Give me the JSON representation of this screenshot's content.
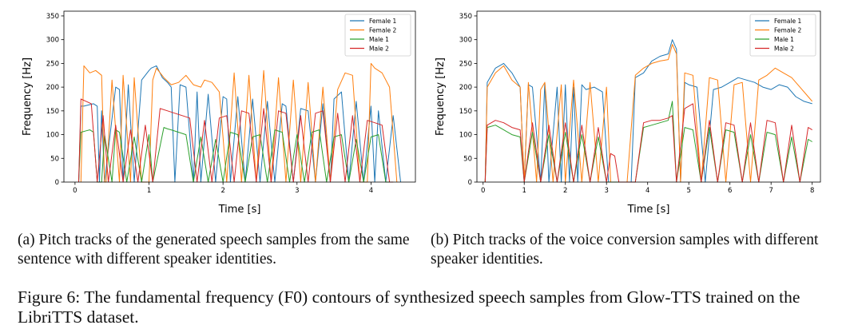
{
  "figure_caption": "Figure 6: The fundamental frequency (F0) contours of synthesized speech samples from Glow-TTS trained on the LibriTTS dataset.",
  "subcaptions": [
    "(a) Pitch tracks of the generated speech samples from the same sentence with different speaker identities.",
    "(b) Pitch tracks of the voice conversion samples with different speaker identities."
  ],
  "colors": {
    "female1": "#1f77b4",
    "female2": "#ff7f0e",
    "male1": "#2ca02c",
    "male2": "#d62728"
  },
  "chart_data": [
    {
      "type": "line",
      "xlabel": "Time [s]",
      "ylabel": "Frequency [Hz]",
      "xlim": [
        -0.15,
        4.6
      ],
      "ylim": [
        0,
        360
      ],
      "xticks": [
        0,
        1,
        2,
        3,
        4
      ],
      "yticks": [
        0,
        50,
        100,
        150,
        200,
        250,
        300,
        350
      ],
      "grid": false,
      "legend_position": "top-right",
      "series": [
        {
          "name": "Female 1",
          "color": "#1f77b4",
          "x": [
            0.05,
            0.08,
            0.12,
            0.25,
            0.3,
            0.33,
            0.36,
            0.4,
            0.55,
            0.6,
            0.65,
            0.72,
            0.8,
            0.9,
            1.0,
            1.03,
            1.1,
            1.18,
            1.25,
            1.3,
            1.35,
            1.42,
            1.5,
            1.6,
            1.65,
            1.7,
            1.8,
            1.9,
            2.0,
            2.05,
            2.1,
            2.2,
            2.3,
            2.4,
            2.5,
            2.6,
            2.7,
            2.8,
            2.85,
            2.95,
            3.05,
            3.15,
            3.25,
            3.35,
            3.45,
            3.5,
            3.6,
            3.7,
            3.8,
            3.9,
            4.0,
            4.05,
            4.1,
            4.2,
            4.3,
            4.4
          ],
          "y": [
            0,
            160,
            160,
            165,
            160,
            0,
            150,
            0,
            200,
            195,
            0,
            205,
            0,
            215,
            235,
            240,
            245,
            220,
            210,
            200,
            0,
            205,
            200,
            0,
            190,
            0,
            185,
            0,
            180,
            175,
            0,
            180,
            0,
            175,
            0,
            170,
            0,
            165,
            160,
            0,
            155,
            150,
            0,
            165,
            0,
            175,
            190,
            0,
            170,
            0,
            160,
            0,
            150,
            0,
            140,
            0
          ]
        },
        {
          "name": "Female 2",
          "color": "#ff7f0e",
          "x": [
            0.08,
            0.12,
            0.2,
            0.28,
            0.36,
            0.4,
            0.42,
            0.5,
            0.6,
            0.65,
            0.75,
            0.8,
            0.9,
            1.0,
            1.05,
            1.1,
            1.2,
            1.3,
            1.4,
            1.5,
            1.6,
            1.7,
            1.75,
            1.85,
            1.95,
            2.05,
            2.15,
            2.25,
            2.35,
            2.45,
            2.55,
            2.65,
            2.75,
            2.85,
            2.95,
            3.05,
            3.15,
            3.25,
            3.35,
            3.45,
            3.55,
            3.65,
            3.75,
            3.85,
            3.95,
            4.0,
            4.05,
            4.15,
            4.25,
            4.35
          ],
          "y": [
            0,
            245,
            230,
            235,
            225,
            0,
            0,
            215,
            0,
            225,
            0,
            220,
            0,
            0,
            215,
            240,
            220,
            205,
            210,
            225,
            205,
            200,
            215,
            210,
            190,
            0,
            230,
            0,
            225,
            0,
            235,
            0,
            220,
            0,
            215,
            0,
            210,
            0,
            200,
            0,
            195,
            230,
            225,
            0,
            0,
            250,
            240,
            230,
            200,
            0
          ]
        },
        {
          "name": "Male 1",
          "color": "#2ca02c",
          "x": [
            0.05,
            0.08,
            0.15,
            0.2,
            0.25,
            0.3,
            0.36,
            0.4,
            0.5,
            0.55,
            0.6,
            0.7,
            0.8,
            0.9,
            1.0,
            1.05,
            1.2,
            1.25,
            1.3,
            1.4,
            1.5,
            1.6,
            1.7,
            1.8,
            1.9,
            2.0,
            2.1,
            2.2,
            2.3,
            2.4,
            2.5,
            2.6,
            2.7,
            2.8,
            2.9,
            3.0,
            3.1,
            3.2,
            3.3,
            3.4,
            3.5,
            3.6,
            3.7,
            3.8,
            3.9,
            4.0,
            4.1,
            4.2,
            4.3
          ],
          "y": [
            0,
            105,
            108,
            110,
            105,
            0,
            0,
            100,
            0,
            110,
            105,
            0,
            95,
            0,
            100,
            0,
            115,
            112,
            110,
            105,
            100,
            0,
            95,
            0,
            90,
            0,
            105,
            100,
            0,
            95,
            100,
            0,
            110,
            105,
            0,
            100,
            0,
            105,
            110,
            0,
            95,
            100,
            0,
            90,
            0,
            95,
            100,
            0,
            0
          ]
        },
        {
          "name": "Male 2",
          "color": "#d62728",
          "x": [
            0.05,
            0.08,
            0.15,
            0.22,
            0.3,
            0.38,
            0.45,
            0.55,
            0.65,
            0.75,
            0.85,
            0.95,
            1.05,
            1.15,
            1.25,
            1.35,
            1.45,
            1.55,
            1.65,
            1.75,
            1.85,
            1.95,
            2.05,
            2.15,
            2.25,
            2.35,
            2.45,
            2.55,
            2.65,
            2.75,
            2.85,
            2.95,
            3.05,
            3.15,
            3.25,
            3.35,
            3.45,
            3.55,
            3.65,
            3.75,
            3.85,
            3.95,
            4.05,
            4.15,
            4.25,
            4.3
          ],
          "y": [
            0,
            175,
            170,
            165,
            0,
            140,
            0,
            120,
            0,
            110,
            0,
            120,
            0,
            155,
            150,
            145,
            140,
            135,
            0,
            130,
            0,
            135,
            140,
            0,
            150,
            145,
            0,
            155,
            0,
            150,
            145,
            0,
            140,
            0,
            145,
            150,
            0,
            145,
            0,
            140,
            0,
            130,
            125,
            120,
            0,
            0
          ]
        }
      ]
    },
    {
      "type": "line",
      "xlabel": "Time [s]",
      "ylabel": "Frequency [Hz]",
      "xlim": [
        -0.15,
        8.2
      ],
      "ylim": [
        0,
        360
      ],
      "xticks": [
        0,
        1,
        2,
        3,
        4,
        5,
        6,
        7,
        8
      ],
      "yticks": [
        0,
        50,
        100,
        150,
        200,
        250,
        300,
        350
      ],
      "grid": false,
      "legend_position": "top-right",
      "series": [
        {
          "name": "Female 1",
          "color": "#1f77b4",
          "x": [
            0.05,
            0.1,
            0.3,
            0.5,
            0.7,
            0.9,
            1.0,
            1.1,
            1.2,
            1.4,
            1.5,
            1.6,
            1.8,
            1.9,
            2.0,
            2.1,
            2.2,
            2.3,
            2.4,
            2.5,
            2.7,
            2.9,
            3.05,
            3.2,
            3.6,
            3.7,
            3.9,
            4.1,
            4.3,
            4.5,
            4.6,
            4.7,
            4.8,
            4.9,
            5.0,
            5.2,
            5.4,
            5.6,
            5.8,
            6.0,
            6.2,
            6.4,
            6.6,
            6.8,
            7.0,
            7.2,
            7.4,
            7.6,
            7.8,
            8.0
          ],
          "y": [
            0,
            210,
            240,
            250,
            230,
            200,
            0,
            205,
            200,
            0,
            210,
            0,
            200,
            0,
            205,
            0,
            200,
            0,
            205,
            195,
            200,
            190,
            0,
            0,
            0,
            220,
            230,
            255,
            265,
            270,
            300,
            280,
            0,
            210,
            205,
            200,
            0,
            195,
            200,
            210,
            220,
            215,
            210,
            200,
            195,
            205,
            200,
            180,
            170,
            165
          ]
        },
        {
          "name": "Female 2",
          "color": "#ff7f0e",
          "x": [
            0.05,
            0.1,
            0.3,
            0.5,
            0.7,
            0.9,
            1.0,
            1.1,
            1.3,
            1.4,
            1.5,
            1.7,
            1.9,
            2.0,
            2.2,
            2.4,
            2.6,
            2.8,
            3.0,
            3.1,
            3.5,
            3.7,
            3.9,
            4.1,
            4.3,
            4.5,
            4.6,
            4.7,
            4.8,
            4.9,
            5.1,
            5.3,
            5.5,
            5.7,
            5.9,
            6.1,
            6.3,
            6.5,
            6.7,
            6.9,
            7.1,
            7.3,
            7.5,
            7.7,
            7.9,
            8.0
          ],
          "y": [
            0,
            200,
            230,
            245,
            215,
            200,
            0,
            210,
            0,
            195,
            210,
            0,
            205,
            0,
            215,
            0,
            210,
            0,
            200,
            0,
            0,
            225,
            240,
            250,
            255,
            258,
            290,
            270,
            0,
            230,
            225,
            0,
            220,
            215,
            0,
            205,
            210,
            0,
            215,
            225,
            240,
            230,
            220,
            200,
            180,
            170
          ]
        },
        {
          "name": "Male 1",
          "color": "#2ca02c",
          "x": [
            0.05,
            0.1,
            0.3,
            0.5,
            0.7,
            0.9,
            1.0,
            1.2,
            1.4,
            1.6,
            1.8,
            2.0,
            2.2,
            2.4,
            2.6,
            2.8,
            3.0,
            3.1,
            3.7,
            3.9,
            4.1,
            4.3,
            4.5,
            4.6,
            4.7,
            4.9,
            5.1,
            5.3,
            5.5,
            5.7,
            5.9,
            6.1,
            6.3,
            6.5,
            6.7,
            6.9,
            7.1,
            7.3,
            7.5,
            7.7,
            7.9,
            8.0
          ],
          "y": [
            0,
            115,
            120,
            110,
            100,
            95,
            0,
            105,
            0,
            100,
            0,
            105,
            0,
            100,
            0,
            95,
            0,
            0,
            0,
            115,
            120,
            125,
            130,
            170,
            0,
            115,
            110,
            0,
            115,
            0,
            110,
            105,
            0,
            100,
            0,
            105,
            100,
            0,
            95,
            0,
            90,
            85
          ]
        },
        {
          "name": "Male 2",
          "color": "#d62728",
          "x": [
            0.05,
            0.1,
            0.3,
            0.5,
            0.7,
            0.9,
            1.0,
            1.2,
            1.4,
            1.6,
            1.8,
            2.0,
            2.2,
            2.4,
            2.6,
            2.8,
            3.0,
            3.1,
            3.2,
            3.3,
            3.7,
            3.9,
            4.1,
            4.3,
            4.5,
            4.6,
            4.7,
            4.9,
            5.1,
            5.3,
            5.5,
            5.7,
            5.9,
            6.1,
            6.3,
            6.5,
            6.7,
            6.9,
            7.1,
            7.3,
            7.5,
            7.7,
            7.9,
            8.0
          ],
          "y": [
            0,
            120,
            130,
            125,
            115,
            110,
            0,
            125,
            0,
            120,
            0,
            125,
            0,
            120,
            0,
            115,
            0,
            60,
            55,
            0,
            0,
            125,
            130,
            130,
            135,
            140,
            0,
            155,
            165,
            0,
            130,
            0,
            125,
            120,
            0,
            125,
            0,
            130,
            125,
            0,
            120,
            0,
            115,
            110
          ]
        }
      ]
    }
  ]
}
